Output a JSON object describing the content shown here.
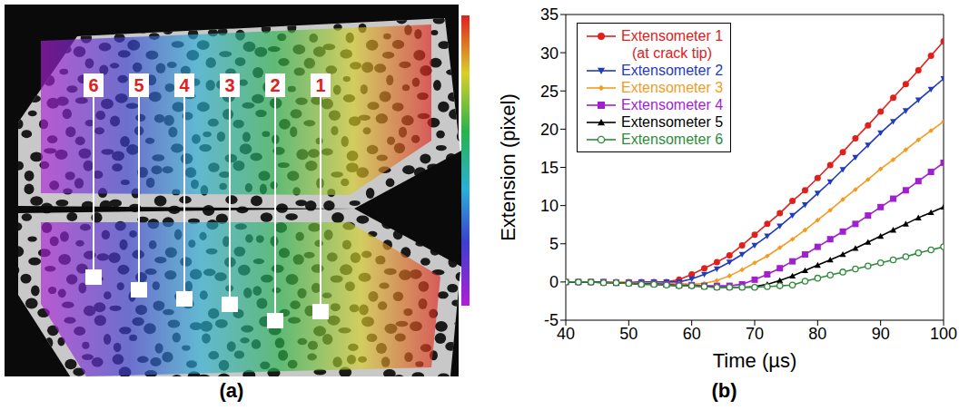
{
  "figure_a": {
    "caption": "(a)",
    "extensometer_labels": [
      "1",
      "2",
      "3",
      "4",
      "5",
      "6"
    ]
  },
  "chart_data": {
    "type": "line",
    "caption": "(b)",
    "x_label": "Time (µs)",
    "y_label": "Extension (pixel)",
    "xlim": [
      40,
      100
    ],
    "xticks": [
      40,
      50,
      60,
      70,
      80,
      90,
      100
    ],
    "ylim": [
      -5,
      35
    ],
    "yticks": [
      -5,
      0,
      5,
      10,
      15,
      20,
      25,
      30,
      35
    ],
    "grid": false,
    "legend": "upper left",
    "x": [
      40,
      42,
      44,
      46,
      48,
      50,
      52,
      54,
      56,
      58,
      60,
      62,
      64,
      66,
      68,
      70,
      72,
      74,
      76,
      78,
      80,
      82,
      84,
      86,
      88,
      90,
      92,
      94,
      96,
      98,
      100
    ],
    "series": [
      {
        "name": "Extensometer 1 (at crack tip)",
        "color": "#e0201b",
        "marker": "circle",
        "values": [
          0,
          0,
          0,
          0,
          0,
          0,
          0,
          0,
          0,
          0.3,
          1.0,
          1.8,
          2.6,
          3.5,
          4.8,
          6.2,
          7.6,
          9.0,
          10.6,
          12.0,
          13.6,
          15.3,
          17.0,
          18.8,
          20.5,
          22.3,
          24.1,
          25.9,
          27.7,
          29.6,
          31.5
        ]
      },
      {
        "name": "Extensometer 2",
        "color": "#1f3bbf",
        "marker": "triangle-down",
        "values": [
          0,
          0,
          0,
          0,
          0,
          0,
          0,
          0,
          0,
          0,
          0.4,
          1.0,
          1.7,
          2.6,
          3.6,
          4.8,
          6.0,
          7.3,
          8.7,
          10.1,
          11.6,
          13.1,
          14.7,
          16.3,
          17.9,
          19.5,
          21.0,
          22.4,
          23.8,
          25.2,
          26.6
        ]
      },
      {
        "name": "Extensometer 3",
        "color": "#f39c1f",
        "marker": "diamond",
        "values": [
          0,
          0,
          0,
          0,
          0,
          0,
          -0.1,
          -0.1,
          -0.2,
          -0.2,
          -0.3,
          -0.2,
          0.2,
          0.8,
          1.6,
          2.5,
          3.4,
          4.5,
          5.6,
          6.8,
          8.1,
          9.4,
          10.8,
          12.1,
          13.4,
          14.8,
          16.0,
          17.3,
          18.6,
          19.8,
          21.0
        ]
      },
      {
        "name": "Extensometer 4",
        "color": "#a21fd0",
        "marker": "square",
        "values": [
          0,
          0,
          0,
          0,
          -0.1,
          -0.1,
          -0.2,
          -0.2,
          -0.3,
          -0.4,
          -0.4,
          -0.5,
          -0.5,
          -0.5,
          -0.3,
          0.3,
          1.0,
          1.8,
          2.7,
          3.6,
          4.6,
          5.6,
          6.6,
          7.6,
          8.7,
          9.8,
          10.9,
          12.0,
          13.2,
          14.4,
          15.6
        ]
      },
      {
        "name": "Extensometer 5",
        "color": "#000000",
        "marker": "triangle",
        "values": [
          0,
          0,
          0,
          -0.1,
          -0.1,
          -0.2,
          -0.3,
          -0.3,
          -0.4,
          -0.5,
          -0.5,
          -0.6,
          -0.7,
          -0.7,
          -0.7,
          -0.6,
          -0.3,
          0.2,
          0.8,
          1.5,
          2.2,
          2.9,
          3.6,
          4.4,
          5.2,
          6.0,
          6.8,
          7.6,
          8.4,
          9.1,
          9.8
        ]
      },
      {
        "name": "Extensometer 6",
        "color": "#2e8b3a",
        "marker": "circle-open",
        "values": [
          0,
          0,
          0,
          -0.1,
          -0.1,
          -0.2,
          -0.3,
          -0.3,
          -0.4,
          -0.5,
          -0.5,
          -0.6,
          -0.7,
          -0.7,
          -0.7,
          -0.7,
          -0.6,
          -0.5,
          -0.4,
          0.1,
          0.5,
          0.9,
          1.3,
          1.7,
          2.1,
          2.5,
          2.9,
          3.3,
          3.8,
          4.2,
          4.6
        ]
      }
    ]
  }
}
